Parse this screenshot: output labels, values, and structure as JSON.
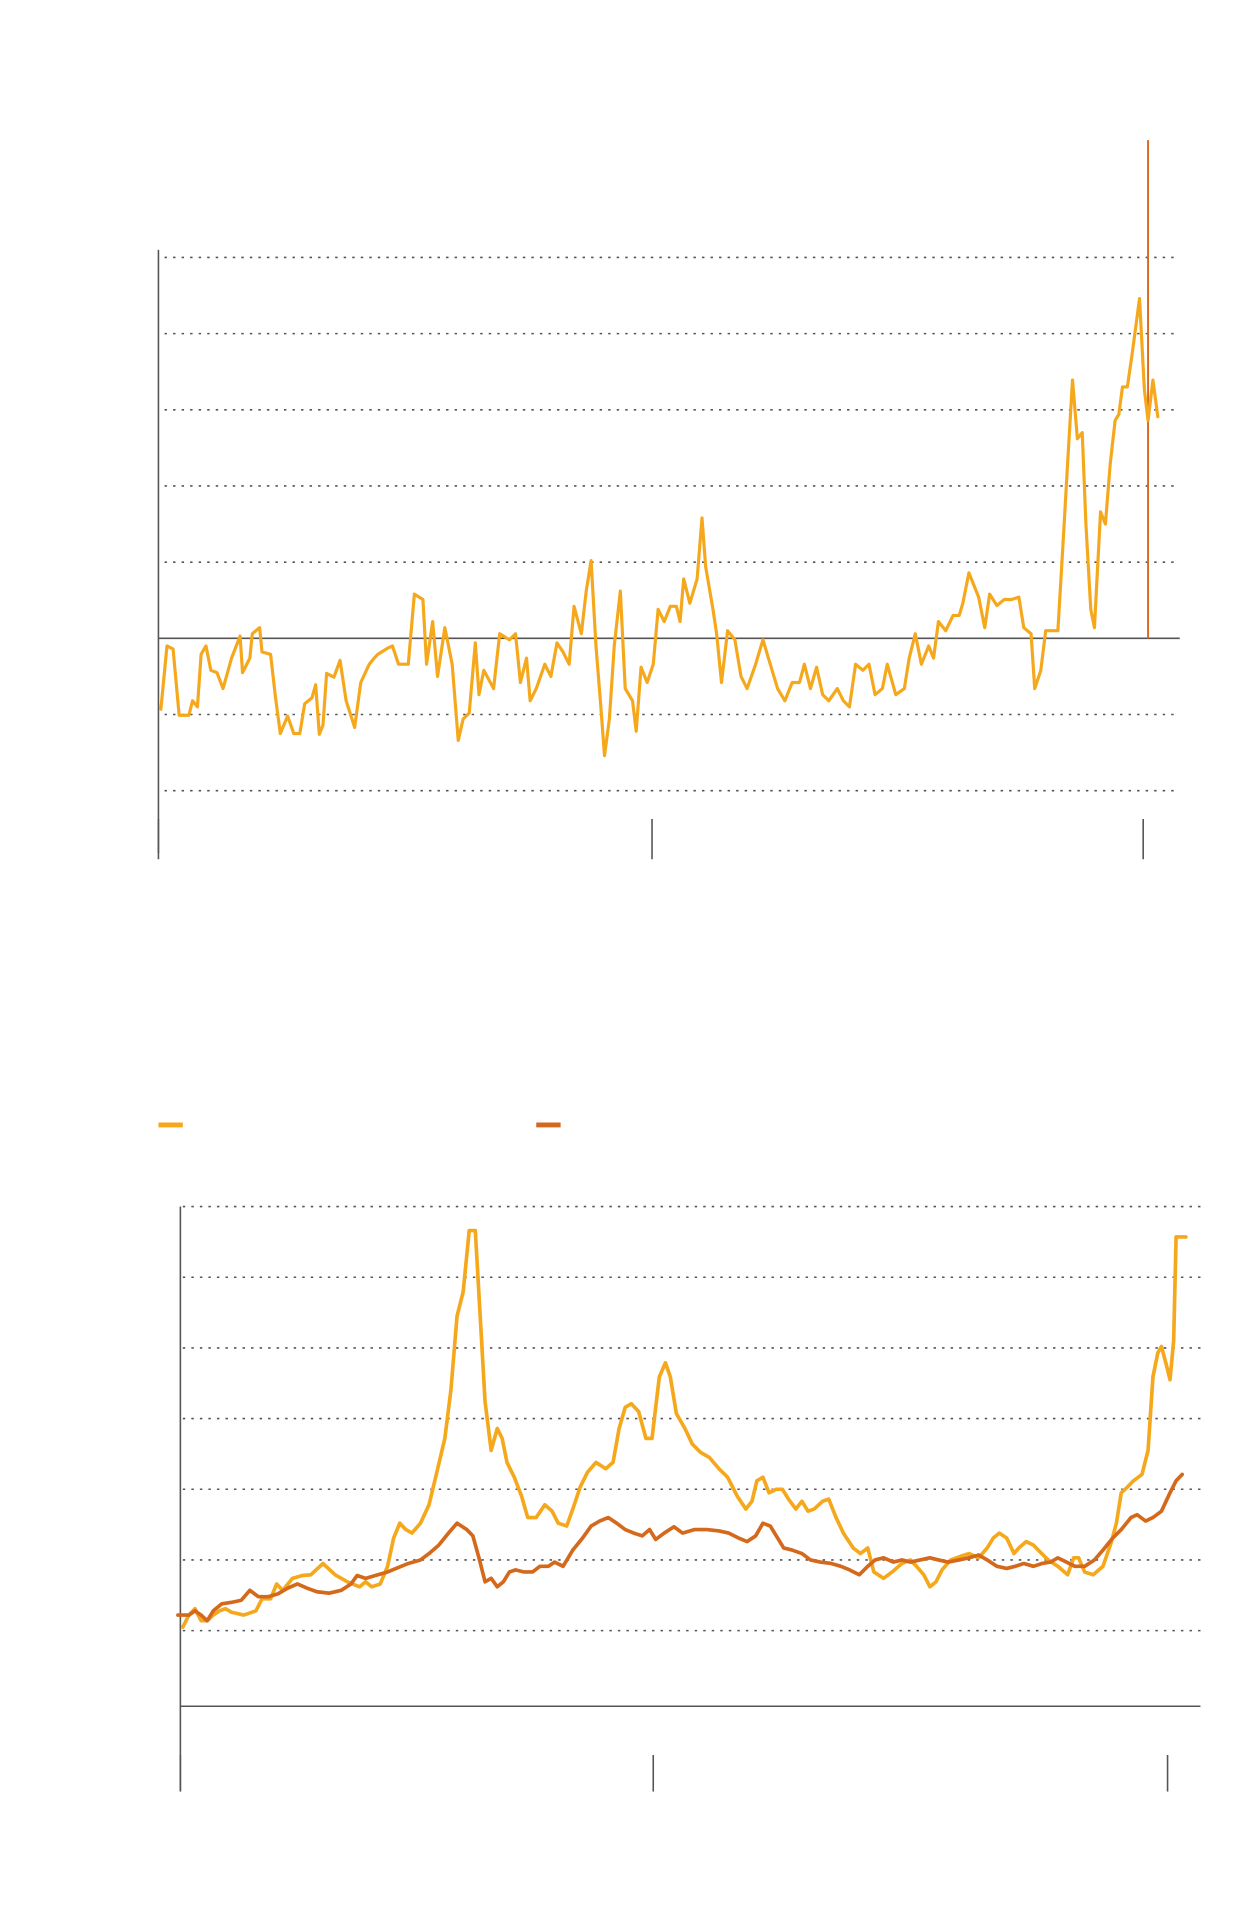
{
  "chart_data": [
    {
      "type": "line",
      "color": "#f5a81c",
      "grid": true,
      "zero_line": true,
      "xlim": [
        0,
        838
      ],
      "xticks": [
        0,
        405,
        808
      ],
      "ylim": [
        -2.82,
        5.1
      ],
      "yticks": [
        -2,
        -1,
        0,
        1,
        2,
        3,
        4,
        5
      ],
      "vline": {
        "x": 812,
        "color": "#d9691e"
      },
      "x": [
        2,
        7,
        12,
        17,
        25,
        28,
        32,
        35,
        39,
        43,
        48,
        53,
        60,
        67,
        69,
        75,
        77,
        83,
        85,
        92,
        96,
        100,
        106,
        111,
        116,
        120,
        126,
        129,
        132,
        135,
        138,
        144,
        149,
        154,
        161,
        166,
        173,
        177,
        180,
        188,
        192,
        197,
        205,
        210,
        217,
        220,
        225,
        229,
        235,
        241,
        246,
        250,
        255,
        260,
        263,
        267,
        275,
        280,
        288,
        293,
        297,
        302,
        305,
        310,
        317,
        322,
        327,
        332,
        337,
        341,
        347,
        351,
        355,
        359,
        363,
        366,
        370,
        374,
        379,
        383,
        389,
        392,
        396,
        401,
        406,
        410,
        415,
        420,
        425,
        428,
        431,
        436,
        442,
        446,
        449,
        455,
        458,
        462,
        467,
        473,
        478,
        483,
        490,
        496,
        502,
        508,
        514,
        520,
        526,
        530,
        535,
        540,
        545,
        550,
        557,
        562,
        567,
        572,
        578,
        583,
        588,
        594,
        598,
        605,
        612,
        616,
        621,
        626,
        632,
        636,
        640,
        646,
        652,
        657,
        660,
        665,
        669,
        673,
        678,
        682,
        688,
        694,
        700,
        706,
        710,
        716,
        719,
        724,
        728,
        735,
        738,
        742,
        746,
        750,
        754,
        758,
        761,
        765,
        768,
        773,
        777,
        781,
        785,
        788,
        791,
        795,
        799,
        805,
        809,
        812,
        816,
        820
      ],
      "values": [
        -0.93,
        -0.1,
        -0.14,
        -1.01,
        -1.01,
        -0.82,
        -0.9,
        -0.21,
        -0.1,
        -0.42,
        -0.45,
        -0.66,
        -0.26,
        0.03,
        -0.45,
        -0.26,
        0.06,
        0.14,
        -0.18,
        -0.21,
        -0.77,
        -1.25,
        -1.02,
        -1.25,
        -1.25,
        -0.86,
        -0.78,
        -0.61,
        -1.26,
        -1.14,
        -0.46,
        -0.51,
        -0.29,
        -0.82,
        -1.17,
        -0.58,
        -0.34,
        -0.26,
        -0.21,
        -0.13,
        -0.1,
        -0.34,
        -0.34,
        0.58,
        0.51,
        -0.34,
        0.22,
        -0.5,
        0.14,
        -0.34,
        -1.34,
        -1.06,
        -0.98,
        -0.06,
        -0.74,
        -0.42,
        -0.66,
        0.06,
        -0.02,
        0.06,
        -0.58,
        -0.26,
        -0.82,
        -0.66,
        -0.34,
        -0.5,
        -0.06,
        -0.18,
        -0.34,
        0.42,
        0.06,
        0.62,
        1.02,
        -0.1,
        -0.9,
        -1.54,
        -1.06,
        -0.1,
        0.62,
        -0.66,
        -0.82,
        -1.22,
        -0.38,
        -0.58,
        -0.34,
        0.38,
        0.22,
        0.42,
        0.42,
        0.22,
        0.78,
        0.46,
        0.78,
        1.58,
        0.94,
        0.38,
        0.06,
        -0.58,
        0.1,
        -0.02,
        -0.5,
        -0.66,
        -0.34,
        -0.02,
        -0.34,
        -0.66,
        -0.82,
        -0.58,
        -0.58,
        -0.34,
        -0.66,
        -0.38,
        -0.74,
        -0.82,
        -0.66,
        -0.82,
        -0.9,
        -0.34,
        -0.42,
        -0.34,
        -0.74,
        -0.66,
        -0.34,
        -0.74,
        -0.66,
        -0.26,
        0.06,
        -0.34,
        -0.1,
        -0.26,
        0.22,
        0.1,
        0.3,
        0.3,
        0.46,
        0.86,
        0.7,
        0.54,
        0.14,
        0.58,
        0.43,
        0.51,
        0.51,
        0.54,
        0.14,
        0.06,
        -0.66,
        -0.42,
        0.1,
        0.1,
        0.1,
        1.18,
        2.3,
        3.39,
        2.62,
        2.7,
        1.5,
        0.38,
        0.14,
        1.66,
        1.5,
        2.3,
        2.86,
        2.94,
        3.3,
        3.3,
        3.74,
        4.46,
        3.26,
        2.86,
        3.39,
        2.91
      ]
    },
    {
      "type": "line",
      "grid": true,
      "legend": true,
      "xlim": [
        0,
        837
      ],
      "xticks": [
        0,
        388,
        810
      ],
      "ylim": [
        -0.07,
        7
      ],
      "yticks": [
        1,
        2,
        3,
        4,
        5,
        6,
        7
      ],
      "series": [
        {
          "color": "#f5a81c",
          "x": [
            2,
            7,
            12,
            17,
            22,
            27,
            32,
            37,
            42,
            52,
            62,
            67,
            74,
            79,
            84,
            92,
            100,
            107,
            117,
            127,
            137,
            147,
            152,
            157,
            164,
            170,
            175,
            180,
            185,
            190,
            197,
            204,
            210,
            217,
            222,
            227,
            232,
            237,
            242,
            246,
            250,
            255,
            260,
            264,
            268,
            274,
            280,
            285,
            292,
            299,
            305,
            310,
            317,
            322,
            328,
            334,
            341,
            349,
            355,
            360,
            365,
            370,
            376,
            382,
            387,
            390,
            393,
            398,
            402,
            407,
            414,
            420,
            427,
            434,
            442,
            449,
            457,
            464,
            469,
            473,
            478,
            483,
            489,
            494,
            499,
            505,
            510,
            515,
            520,
            527,
            532,
            538,
            544,
            552,
            558,
            564,
            569,
            577,
            584,
            592,
            599,
            604,
            610,
            615,
            620,
            625,
            632,
            640,
            647,
            655,
            662,
            667,
            672,
            678,
            684,
            688,
            694,
            700,
            705,
            712,
            720,
            728,
            733,
            737,
            742,
            749,
            757,
            764,
            768,
            772,
            777,
            782,
            789,
            794,
            798,
            802,
            805,
            809,
            812,
            815,
            817,
            825
          ],
          "values": [
            1.05,
            1.22,
            1.31,
            1.14,
            1.14,
            1.22,
            1.28,
            1.31,
            1.26,
            1.22,
            1.28,
            1.45,
            1.45,
            1.66,
            1.57,
            1.74,
            1.78,
            1.79,
            1.95,
            1.79,
            1.69,
            1.62,
            1.69,
            1.62,
            1.66,
            1.91,
            2.31,
            2.52,
            2.43,
            2.38,
            2.52,
            2.78,
            3.21,
            3.72,
            4.41,
            5.45,
            5.79,
            6.66,
            6.66,
            5.45,
            4.24,
            3.55,
            3.86,
            3.72,
            3.38,
            3.17,
            2.9,
            2.6,
            2.6,
            2.78,
            2.69,
            2.52,
            2.48,
            2.72,
            3.03,
            3.24,
            3.38,
            3.29,
            3.38,
            3.86,
            4.16,
            4.21,
            4.1,
            3.72,
            3.72,
            4.16,
            4.59,
            4.79,
            4.59,
            4.07,
            3.86,
            3.64,
            3.52,
            3.45,
            3.29,
            3.17,
            2.9,
            2.72,
            2.83,
            3.12,
            3.17,
            2.95,
            3.0,
            3.0,
            2.86,
            2.72,
            2.83,
            2.69,
            2.72,
            2.83,
            2.86,
            2.6,
            2.38,
            2.17,
            2.09,
            2.17,
            1.83,
            1.74,
            1.83,
            1.95,
            2.0,
            1.91,
            1.79,
            1.62,
            1.69,
            1.86,
            2.0,
            2.05,
            2.09,
            2.03,
            2.17,
            2.31,
            2.38,
            2.31,
            2.09,
            2.17,
            2.26,
            2.21,
            2.12,
            2.0,
            1.91,
            1.79,
            2.03,
            2.03,
            1.83,
            1.79,
            1.91,
            2.26,
            2.52,
            2.95,
            3.03,
            3.12,
            3.21,
            3.55,
            4.59,
            4.93,
            5.02,
            4.76,
            4.55,
            5.1,
            6.57,
            6.57
          ]
        },
        {
          "color": "#d4691c",
          "x": [
            -2,
            7,
            12,
            17,
            22,
            27,
            34,
            42,
            50,
            57,
            64,
            72,
            80,
            88,
            96,
            104,
            112,
            122,
            132,
            140,
            145,
            152,
            160,
            170,
            177,
            187,
            197,
            204,
            212,
            220,
            227,
            235,
            240,
            245,
            250,
            255,
            260,
            265,
            270,
            275,
            282,
            289,
            295,
            302,
            307,
            314,
            322,
            330,
            337,
            344,
            351,
            358,
            365,
            372,
            379,
            385,
            390,
            397,
            405,
            412,
            422,
            432,
            442,
            450,
            458,
            465,
            472,
            478,
            484,
            489,
            495,
            502,
            510,
            517,
            525,
            534,
            542,
            549,
            557,
            564,
            570,
            577,
            585,
            592,
            599,
            607,
            615,
            622,
            630,
            639,
            647,
            655,
            662,
            670,
            678,
            685,
            692,
            700,
            707,
            714,
            720,
            727,
            734,
            742,
            750,
            757,
            765,
            772,
            780,
            785,
            792,
            798,
            805,
            812,
            817,
            822
          ],
          "values": [
            1.22,
            1.22,
            1.28,
            1.22,
            1.14,
            1.28,
            1.38,
            1.4,
            1.43,
            1.57,
            1.48,
            1.48,
            1.52,
            1.6,
            1.66,
            1.6,
            1.55,
            1.53,
            1.57,
            1.66,
            1.78,
            1.74,
            1.78,
            1.83,
            1.88,
            1.95,
            2.0,
            2.09,
            2.21,
            2.38,
            2.52,
            2.43,
            2.34,
            2.03,
            1.69,
            1.74,
            1.62,
            1.69,
            1.83,
            1.86,
            1.83,
            1.83,
            1.91,
            1.91,
            1.97,
            1.91,
            2.14,
            2.31,
            2.48,
            2.55,
            2.6,
            2.52,
            2.43,
            2.38,
            2.34,
            2.43,
            2.29,
            2.38,
            2.47,
            2.38,
            2.43,
            2.43,
            2.41,
            2.38,
            2.31,
            2.26,
            2.34,
            2.52,
            2.48,
            2.34,
            2.17,
            2.14,
            2.09,
            2.0,
            1.97,
            1.95,
            1.91,
            1.86,
            1.79,
            1.91,
            2.0,
            2.03,
            1.97,
            2.0,
            1.97,
            2.0,
            2.03,
            2.0,
            1.97,
            2.0,
            2.03,
            2.07,
            2.0,
            1.91,
            1.88,
            1.91,
            1.95,
            1.91,
            1.95,
            1.97,
            2.03,
            1.97,
            1.91,
            1.91,
            2.0,
            2.14,
            2.31,
            2.43,
            2.6,
            2.64,
            2.55,
            2.6,
            2.69,
            2.95,
            3.12,
            3.21
          ]
        }
      ]
    }
  ]
}
